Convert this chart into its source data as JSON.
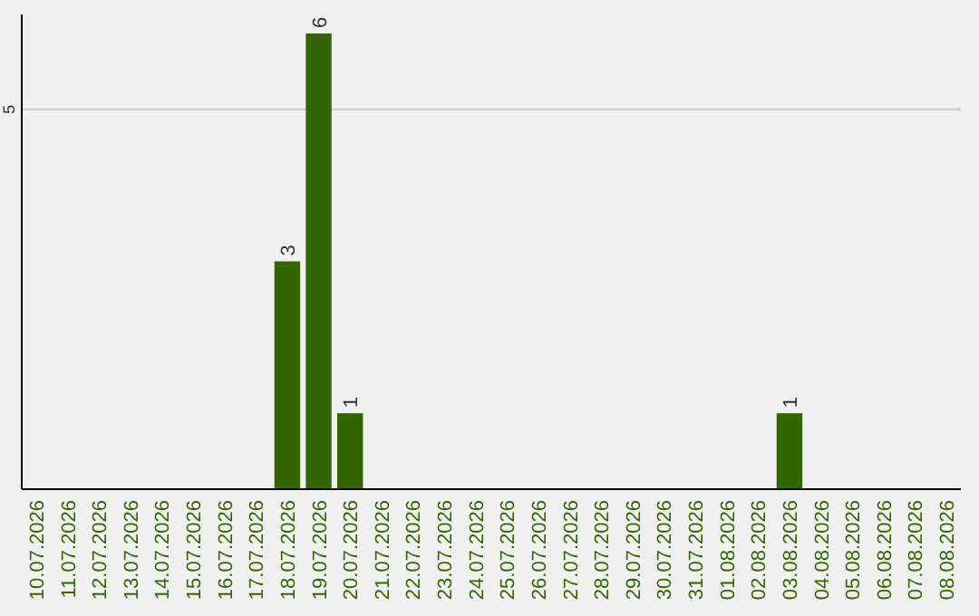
{
  "chart_data": {
    "type": "bar",
    "categories": [
      "10.07.2026",
      "11.07.2026",
      "12.07.2026",
      "13.07.2026",
      "14.07.2026",
      "15.07.2026",
      "16.07.2026",
      "17.07.2026",
      "18.07.2026",
      "19.07.2026",
      "20.07.2026",
      "21.07.2026",
      "22.07.2026",
      "23.07.2026",
      "24.07.2026",
      "25.07.2026",
      "26.07.2026",
      "27.07.2026",
      "28.07.2026",
      "29.07.2026",
      "30.07.2026",
      "31.07.2026",
      "01.08.2026",
      "02.08.2026",
      "03.08.2026",
      "04.08.2026",
      "05.08.2026",
      "06.08.2026",
      "07.08.2026",
      "08.08.2026"
    ],
    "values": [
      0,
      0,
      0,
      0,
      0,
      0,
      0,
      0,
      3,
      6,
      1,
      0,
      0,
      0,
      0,
      0,
      0,
      0,
      0,
      0,
      0,
      0,
      0,
      0,
      1,
      0,
      0,
      0,
      0,
      0
    ],
    "color": "#336600",
    "ylim": [
      0,
      6.25
    ],
    "yticks": [
      5
    ],
    "grid": "y",
    "value_labels": [
      null,
      null,
      null,
      null,
      null,
      null,
      null,
      null,
      "3",
      "6",
      "1",
      null,
      null,
      null,
      null,
      null,
      null,
      null,
      null,
      null,
      null,
      null,
      null,
      null,
      "1",
      null,
      null,
      null,
      null,
      null
    ]
  }
}
